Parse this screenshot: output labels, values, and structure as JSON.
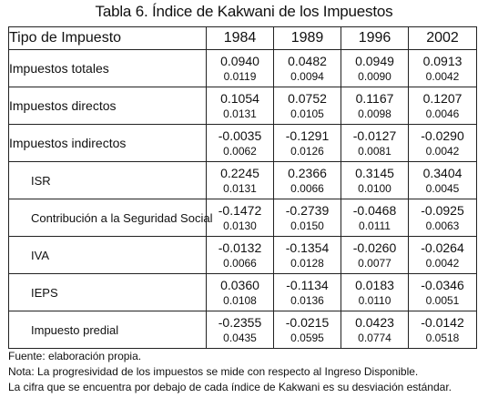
{
  "title": "Tabla 6. Índice de Kakwani de los Impuestos",
  "header": {
    "type_label": "Tipo de Impuesto",
    "years": [
      "1984",
      "1989",
      "1996",
      "2002"
    ]
  },
  "rows": [
    {
      "label": "Impuestos totales",
      "coef": [
        "0.0940",
        "0.0482",
        "0.0949",
        "0.0913"
      ],
      "desv": [
        "0.0119",
        "0.0094",
        "0.0090",
        "0.0042"
      ]
    },
    {
      "label": "Impuestos directos",
      "coef": [
        "0.1054",
        "0.0752",
        "0.1167",
        "0.1207"
      ],
      "desv": [
        "0.0131",
        "0.0105",
        "0.0098",
        "0.0046"
      ]
    },
    {
      "label": "Impuestos indirectos",
      "coef": [
        "-0.0035",
        "-0.1291",
        "-0.0127",
        "-0.0290"
      ],
      "desv": [
        "0.0062",
        "0.0126",
        "0.0081",
        "0.0042"
      ]
    },
    {
      "label": "ISR",
      "coef": [
        "0.2245",
        "0.2366",
        "0.3145",
        "0.3404"
      ],
      "desv": [
        "0.0131",
        "0.0066",
        "0.0100",
        "0.0045"
      ]
    },
    {
      "label": "Contribución a la Seguridad Social",
      "coef": [
        "-0.1472",
        "-0.2739",
        "-0.0468",
        "-0.0925"
      ],
      "desv": [
        "0.0130",
        "0.0150",
        "0.0111",
        "0.0063"
      ]
    },
    {
      "label": "IVA",
      "coef": [
        "-0.0132",
        "-0.1354",
        "-0.0260",
        "-0.0264"
      ],
      "desv": [
        "0.0066",
        "0.0128",
        "0.0077",
        "0.0042"
      ]
    },
    {
      "label": "IEPS",
      "coef": [
        "0.0360",
        "-0.1134",
        "0.0183",
        "-0.0346"
      ],
      "desv": [
        "0.0108",
        "0.0136",
        "0.0110",
        "0.0051"
      ]
    },
    {
      "label": "Impuesto predial",
      "coef": [
        "-0.2355",
        "-0.0215",
        "0.0423",
        "-0.0142"
      ],
      "desv": [
        "0.0435",
        "0.0595",
        "0.0774",
        "0.0518"
      ]
    }
  ],
  "notes": {
    "source": "Fuente: elaboración propia.",
    "note": "Nota: La progresividad de los impuestos se mide con respecto al Ingreso Disponible.",
    "explanation": "La cifra que se encuentra por debajo de cada índice de Kakwani es su desviación estándar."
  }
}
